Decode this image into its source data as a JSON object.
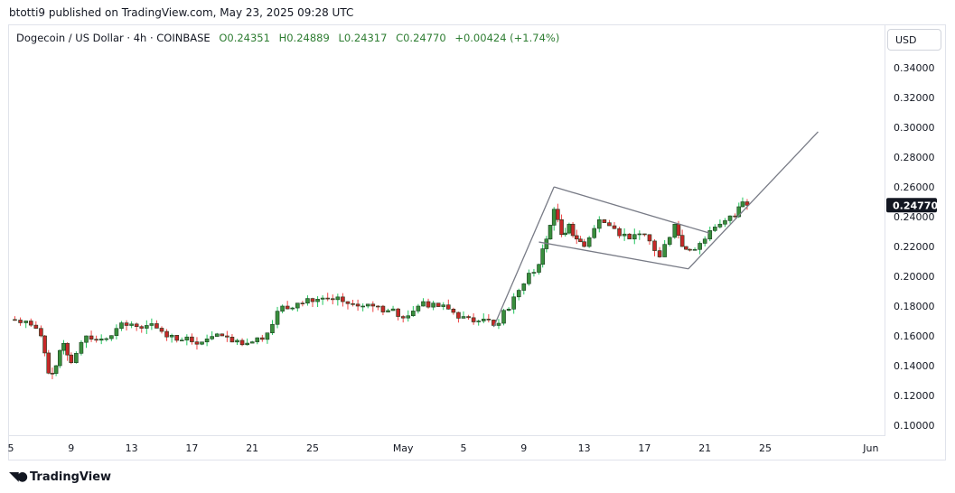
{
  "header": {
    "published": "btotti9 published on TradingView.com, May 23, 2025 09:28 UTC"
  },
  "legend": {
    "symbol": "Dogecoin / US Dollar · 4h · COINBASE",
    "open": "O0.24351",
    "high": "H0.24889",
    "low": "L0.24317",
    "close": "C0.24770",
    "change": "+0.00424 (+1.74%)"
  },
  "currency_button": "USD",
  "footer": {
    "brand": "TradingView"
  },
  "colors": {
    "up": "#388e3c",
    "down": "#c62828",
    "up_wick": "#22c55e",
    "down_wick": "#ef4444",
    "line": "#787b86"
  },
  "chart_data": {
    "type": "candlestick",
    "title": "Dogecoin / US Dollar · 4h · COINBASE",
    "ylim": [
      0.09,
      0.355
    ],
    "y_ticks": [
      "0.34000",
      "0.32000",
      "0.30000",
      "0.28000",
      "0.26000",
      "0.24000",
      "0.22000",
      "0.20000",
      "0.18000",
      "0.16000",
      "0.14000",
      "0.12000",
      "0.10000"
    ],
    "x_ticks": [
      {
        "label": "5",
        "day": 0
      },
      {
        "label": "9",
        "day": 4
      },
      {
        "label": "13",
        "day": 8
      },
      {
        "label": "17",
        "day": 12
      },
      {
        "label": "21",
        "day": 16
      },
      {
        "label": "25",
        "day": 20
      },
      {
        "label": "May",
        "day": 26
      },
      {
        "label": "5",
        "day": 30
      },
      {
        "label": "9",
        "day": 34
      },
      {
        "label": "13",
        "day": 38
      },
      {
        "label": "17",
        "day": 42
      },
      {
        "label": "21",
        "day": 46
      },
      {
        "label": "25",
        "day": 50
      },
      {
        "label": "Jun",
        "day": 57
      }
    ],
    "x_unit": "days since Apr 5, 2025",
    "last_price": "0.24770",
    "closes": [
      [
        -0.1,
        0.171
      ],
      [
        1,
        0.17
      ],
      [
        2,
        0.16
      ],
      [
        2.5,
        0.135
      ],
      [
        3,
        0.14
      ],
      [
        3.5,
        0.155
      ],
      [
        4,
        0.142
      ],
      [
        5,
        0.16
      ],
      [
        6,
        0.158
      ],
      [
        7,
        0.165
      ],
      [
        8,
        0.168
      ],
      [
        9,
        0.167
      ],
      [
        10,
        0.163
      ],
      [
        11,
        0.157
      ],
      [
        12,
        0.156
      ],
      [
        13,
        0.158
      ],
      [
        14,
        0.16
      ],
      [
        15,
        0.157
      ],
      [
        16,
        0.156
      ],
      [
        17,
        0.162
      ],
      [
        18,
        0.18
      ],
      [
        19,
        0.182
      ],
      [
        20,
        0.183
      ],
      [
        21,
        0.185
      ],
      [
        22,
        0.183
      ],
      [
        23,
        0.18
      ],
      [
        24,
        0.18
      ],
      [
        25,
        0.177
      ],
      [
        26,
        0.172
      ],
      [
        27,
        0.18
      ],
      [
        28,
        0.182
      ],
      [
        29,
        0.178
      ],
      [
        30,
        0.173
      ],
      [
        31,
        0.17
      ],
      [
        32,
        0.167
      ],
      [
        33,
        0.178
      ],
      [
        34,
        0.195
      ],
      [
        35,
        0.208
      ],
      [
        35.5,
        0.225
      ],
      [
        36,
        0.245
      ],
      [
        36.5,
        0.228
      ],
      [
        37,
        0.235
      ],
      [
        37.5,
        0.225
      ],
      [
        38,
        0.22
      ],
      [
        39,
        0.238
      ],
      [
        40,
        0.232
      ],
      [
        41,
        0.225
      ],
      [
        42,
        0.228
      ],
      [
        43,
        0.213
      ],
      [
        44,
        0.235
      ],
      [
        44.5,
        0.22
      ],
      [
        45,
        0.218
      ],
      [
        46,
        0.225
      ],
      [
        47,
        0.235
      ],
      [
        48,
        0.24
      ],
      [
        48.5,
        0.25
      ],
      [
        48.8,
        0.2477
      ]
    ],
    "drawings": [
      {
        "name": "flagpole-line",
        "points": [
          [
            32.0,
            0.166
          ],
          [
            36.0,
            0.26
          ]
        ]
      },
      {
        "name": "flag-upper-line",
        "points": [
          [
            36.0,
            0.26
          ],
          [
            46.3,
            0.229
          ]
        ]
      },
      {
        "name": "flag-lower-line",
        "points": [
          [
            35.0,
            0.223
          ],
          [
            44.9,
            0.205
          ]
        ]
      },
      {
        "name": "breakout-projection-line",
        "points": [
          [
            44.9,
            0.205
          ],
          [
            53.5,
            0.297
          ]
        ]
      }
    ]
  }
}
